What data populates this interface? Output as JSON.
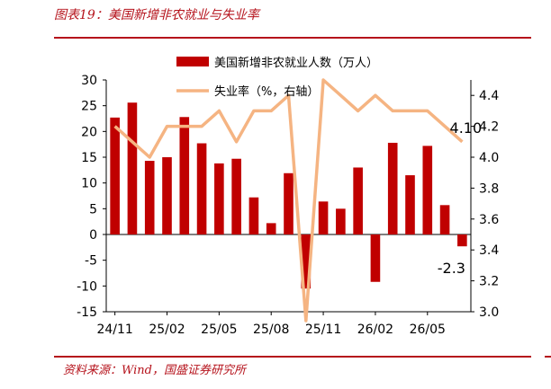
{
  "header": {
    "title": "图表19：美国新增非农就业与失业率"
  },
  "footer": {
    "source": "资料来源：Wind，国盛证券研究所"
  },
  "colors": {
    "bar": "#c00000",
    "line": "#f5b482",
    "accent": "#b5121b",
    "axis": "#000000"
  },
  "chart_data": {
    "type": "bar",
    "x": [
      "24/11",
      "24/12",
      "25/01",
      "25/02",
      "25/03",
      "25/04",
      "25/05",
      "25/06",
      "25/07",
      "25/08",
      "25/09",
      "25/10",
      "25/11",
      "25/12",
      "26/01",
      "26/02",
      "26/03",
      "26/04",
      "26/05",
      "26/06",
      "26/07"
    ],
    "xtick_labels": [
      "24/11",
      "25/02",
      "25/05",
      "25/08",
      "25/11",
      "26/02",
      "26/05"
    ],
    "series": [
      {
        "name": "美国新增非农就业人数（万人）",
        "type": "bar",
        "axis": "left",
        "values": [
          22.7,
          25.6,
          14.3,
          15.0,
          22.8,
          17.7,
          13.8,
          14.7,
          7.2,
          2.2,
          11.9,
          -10.5,
          6.4,
          5.0,
          13.0,
          -9.2,
          17.8,
          11.5,
          17.2,
          5.7,
          -2.3
        ]
      },
      {
        "name": "失业率（%，右轴）",
        "type": "line",
        "axis": "right",
        "values": [
          4.2,
          4.1,
          4.0,
          4.2,
          4.2,
          4.2,
          4.3,
          4.1,
          4.3,
          4.3,
          4.4,
          null,
          4.5,
          4.4,
          4.3,
          4.4,
          4.3,
          4.3,
          4.3,
          4.2,
          4.1
        ]
      }
    ],
    "annotations": [
      {
        "text": "4.10",
        "series": 1,
        "index": 20
      },
      {
        "text": "-2.3",
        "series": 0,
        "index": 20
      }
    ],
    "ylim_left": [
      -15,
      30
    ],
    "yticks_left": [
      "30",
      "25",
      "20",
      "15",
      "10",
      "5",
      "0",
      "-5",
      "-10",
      "-15"
    ],
    "ylim_right": [
      3.0,
      4.5
    ],
    "yticks_right": [
      "4.4",
      "4.2",
      "4.0",
      "3.8",
      "3.6",
      "3.4",
      "3.2",
      "3.0"
    ],
    "xlabel": "",
    "ylabel": "",
    "grid": false,
    "legend_position": "top-center"
  }
}
